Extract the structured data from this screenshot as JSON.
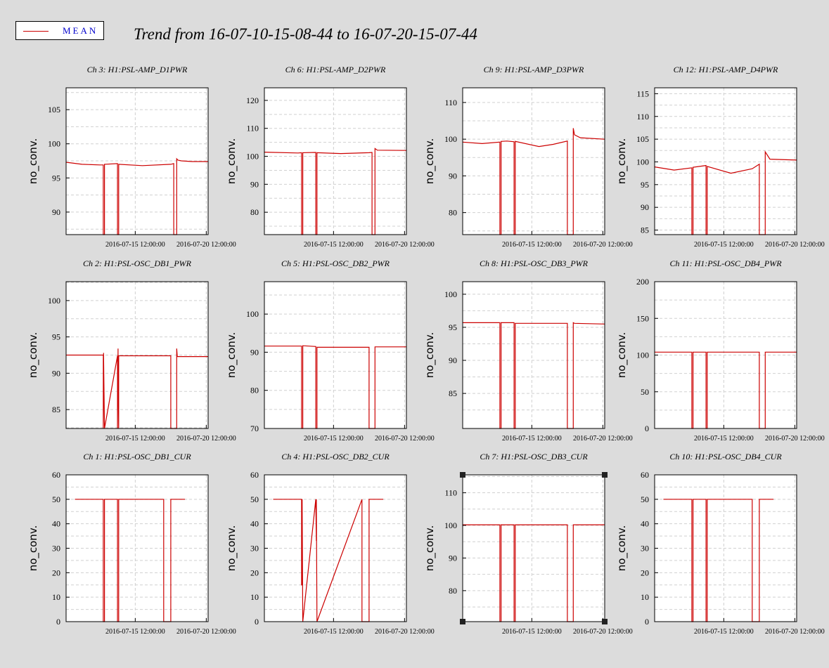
{
  "title": "Trend from 16-07-10-15-08-44 to 16-07-20-15-07-44",
  "legend": {
    "label": "MEAN",
    "color": "#cc0000"
  },
  "selected_chart": "Ch 7: H1:PSL-OSC_DB3_CUR",
  "chart_data": [
    {
      "type": "line",
      "title": "Ch 3: H1:PSL-AMP_D1PWR",
      "ylabel": "no_conv.",
      "xlim": [
        "2016-07-10 15:08:44",
        "2016-07-20 15:07:44"
      ],
      "xticks": [
        "2016-07-15 12:00:00",
        "2016-07-20 12:00:00"
      ],
      "ylim": [
        86.7,
        108.2
      ],
      "yticks": [
        90,
        95,
        100,
        105
      ],
      "grid": true,
      "series": [
        {
          "name": "MEAN",
          "x": [
            "2016-07-10 15:08:44",
            "2016-07-11 18:00:00",
            "2016-07-13 00:00:00",
            "2016-07-13 06:00:00",
            "2016-07-13 06:00:00",
            "2016-07-13 08:00:00",
            "2016-07-13 08:00:00",
            "2016-07-14 06:00:00",
            "2016-07-14 06:00:00",
            "2016-07-14 08:00:00",
            "2016-07-14 08:00:00",
            "2016-07-16 00:00:00",
            "2016-07-18 00:00:00",
            "2016-07-18 05:00:00",
            "2016-07-18 05:00:00",
            "2016-07-18 10:00:00",
            "2016-07-18 10:00:00",
            "2016-07-18 12:00:00",
            "2016-07-18 18:00:00",
            "2016-07-19 12:00:00",
            "2016-07-20 15:07:44"
          ],
          "y": [
            97.3,
            97.0,
            96.9,
            96.9,
            86.7,
            86.7,
            97.0,
            97.1,
            86.7,
            86.7,
            97.0,
            96.8,
            97.0,
            97.1,
            86.7,
            86.7,
            97.8,
            97.6,
            97.5,
            97.4,
            97.4
          ]
        }
      ]
    },
    {
      "type": "line",
      "title": "Ch 6: H1:PSL-AMP_D2PWR",
      "ylabel": "no_conv.",
      "xlim": [
        "2016-07-10 15:08:44",
        "2016-07-20 15:07:44"
      ],
      "xticks": [
        "2016-07-15 12:00:00",
        "2016-07-20 12:00:00"
      ],
      "ylim": [
        72,
        124.5
      ],
      "yticks": [
        80,
        90,
        100,
        110,
        120
      ],
      "grid": true,
      "series": [
        {
          "name": "MEAN",
          "x": [
            "2016-07-10 15:08:44",
            "2016-07-13 00:00:00",
            "2016-07-13 06:00:00",
            "2016-07-13 06:00:00",
            "2016-07-13 08:00:00",
            "2016-07-13 08:00:00",
            "2016-07-14 06:00:00",
            "2016-07-14 06:00:00",
            "2016-07-14 08:00:00",
            "2016-07-14 08:00:00",
            "2016-07-16 00:00:00",
            "2016-07-18 00:00:00",
            "2016-07-18 05:00:00",
            "2016-07-18 05:00:00",
            "2016-07-18 10:00:00",
            "2016-07-18 10:00:00",
            "2016-07-18 14:00:00",
            "2016-07-20 15:07:44"
          ],
          "y": [
            101.5,
            101.2,
            101.3,
            72,
            72,
            101.3,
            101.4,
            72,
            72,
            101.3,
            101.0,
            101.3,
            101.4,
            72,
            72,
            102.8,
            102.2,
            102.1
          ]
        }
      ]
    },
    {
      "type": "line",
      "title": "Ch 9: H1:PSL-AMP_D3PWR",
      "ylabel": "no_conv.",
      "xlim": [
        "2016-07-10 15:08:44",
        "2016-07-20 15:07:44"
      ],
      "xticks": [
        "2016-07-15 12:00:00",
        "2016-07-20 12:00:00"
      ],
      "ylim": [
        74,
        114
      ],
      "yticks": [
        80,
        90,
        100,
        110
      ],
      "grid": true,
      "series": [
        {
          "name": "MEAN",
          "x": [
            "2016-07-10 15:08:44",
            "2016-07-12 00:00:00",
            "2016-07-13 06:00:00",
            "2016-07-13 06:00:00",
            "2016-07-13 08:00:00",
            "2016-07-13 08:00:00",
            "2016-07-13 18:00:00",
            "2016-07-14 06:00:00",
            "2016-07-14 06:00:00",
            "2016-07-14 08:00:00",
            "2016-07-14 08:00:00",
            "2016-07-16 00:00:00",
            "2016-07-17 00:00:00",
            "2016-07-18 00:00:00",
            "2016-07-18 00:00:00",
            "2016-07-18 10:00:00",
            "2016-07-18 10:00:00",
            "2016-07-18 12:00:00",
            "2016-07-18 22:00:00",
            "2016-07-20 15:07:44"
          ],
          "y": [
            99.2,
            98.8,
            99.2,
            74,
            74,
            99.4,
            99.5,
            99.3,
            74,
            74,
            99.4,
            98.0,
            98.6,
            99.5,
            74,
            74,
            103.0,
            101.2,
            100.4,
            100.0
          ]
        }
      ]
    },
    {
      "type": "line",
      "title": "Ch 12: H1:PSL-AMP_D4PWR",
      "ylabel": "no_conv.",
      "xlim": [
        "2016-07-10 15:08:44",
        "2016-07-20 15:07:44"
      ],
      "xticks": [
        "2016-07-15 12:00:00",
        "2016-07-20 12:00:00"
      ],
      "ylim": [
        84,
        116.3
      ],
      "yticks": [
        85,
        90,
        95,
        100,
        105,
        110,
        115
      ],
      "grid": true,
      "series": [
        {
          "name": "MEAN",
          "x": [
            "2016-07-10 15:08:44",
            "2016-07-12 00:00:00",
            "2016-07-13 06:00:00",
            "2016-07-13 06:00:00",
            "2016-07-13 08:00:00",
            "2016-07-13 08:00:00",
            "2016-07-14 06:00:00",
            "2016-07-14 06:00:00",
            "2016-07-14 08:00:00",
            "2016-07-14 08:00:00",
            "2016-07-16 00:00:00",
            "2016-07-17 12:00:00",
            "2016-07-18 00:00:00",
            "2016-07-18 00:00:00",
            "2016-07-18 10:00:00",
            "2016-07-18 10:00:00",
            "2016-07-18 18:00:00",
            "2016-07-20 15:07:44"
          ],
          "y": [
            98.9,
            98.2,
            98.7,
            84,
            84,
            98.8,
            99.2,
            84,
            84,
            99.0,
            97.5,
            98.5,
            99.5,
            84,
            84,
            102.2,
            100.6,
            100.4
          ]
        }
      ]
    },
    {
      "type": "line",
      "title": "Ch 2: H1:PSL-OSC_DB1_PWR",
      "ylabel": "no_conv.",
      "xlim": [
        "2016-07-10 15:08:44",
        "2016-07-20 15:07:44"
      ],
      "xticks": [
        "2016-07-15 12:00:00",
        "2016-07-20 12:00:00"
      ],
      "ylim": [
        82.4,
        102.6
      ],
      "yticks": [
        85,
        90,
        95,
        100
      ],
      "grid": true,
      "series": [
        {
          "name": "MEAN",
          "x": [
            "2016-07-10 15:08:44",
            "2016-07-13 06:00:00",
            "2016-07-13 06:00:00",
            "2016-07-13 06:30:00",
            "2016-07-13 06:30:00",
            "2016-07-13 08:00:00",
            "2016-07-13 08:00:00",
            "2016-07-14 06:00:00",
            "2016-07-14 06:00:00",
            "2016-07-14 07:00:00",
            "2016-07-14 07:00:00",
            "2016-07-14 08:00:00",
            "2016-07-14 08:00:00",
            "2016-07-18 00:00:00",
            "2016-07-18 00:00:00",
            "2016-07-18 10:00:00",
            "2016-07-18 10:00:00",
            "2016-07-18 11:00:00",
            "2016-07-18 11:00:00",
            "2016-07-20 15:07:44"
          ],
          "y": [
            92.5,
            92.5,
            82.4,
            92.8,
            92.4,
            82.4,
            82.4,
            92.4,
            82.4,
            93.4,
            92.4,
            82.4,
            92.4,
            92.4,
            82.4,
            82.4,
            93.4,
            92.3,
            92.3,
            92.3
          ]
        }
      ]
    },
    {
      "type": "line",
      "title": "Ch 5: H1:PSL-OSC_DB2_PWR",
      "ylabel": "no_conv.",
      "xlim": [
        "2016-07-10 15:08:44",
        "2016-07-20 15:07:44"
      ],
      "xticks": [
        "2016-07-15 12:00:00",
        "2016-07-20 12:00:00"
      ],
      "ylim": [
        70,
        108.5
      ],
      "yticks": [
        70,
        80,
        90,
        100
      ],
      "grid": true,
      "series": [
        {
          "name": "MEAN",
          "x": [
            "2016-07-10 15:08:44",
            "2016-07-13 06:00:00",
            "2016-07-13 06:00:00",
            "2016-07-13 08:00:00",
            "2016-07-13 08:00:00",
            "2016-07-14 06:00:00",
            "2016-07-14 06:00:00",
            "2016-07-14 08:00:00",
            "2016-07-14 08:00:00",
            "2016-07-18 00:00:00",
            "2016-07-18 00:00:00",
            "2016-07-18 10:00:00",
            "2016-07-18 10:00:00",
            "2016-07-20 15:07:44"
          ],
          "y": [
            91.6,
            91.6,
            70,
            70,
            91.7,
            91.5,
            70,
            70,
            91.3,
            91.3,
            70,
            70,
            91.4,
            91.4
          ]
        }
      ]
    },
    {
      "type": "line",
      "title": "Ch 8: H1:PSL-OSC_DB3_PWR",
      "ylabel": "no_conv.",
      "xlim": [
        "2016-07-10 15:08:44",
        "2016-07-20 15:07:44"
      ],
      "xticks": [
        "2016-07-15 12:00:00",
        "2016-07-20 12:00:00"
      ],
      "ylim": [
        79.7,
        101.9
      ],
      "yticks": [
        85,
        90,
        95,
        100
      ],
      "grid": true,
      "series": [
        {
          "name": "MEAN",
          "x": [
            "2016-07-10 15:08:44",
            "2016-07-13 06:00:00",
            "2016-07-13 06:00:00",
            "2016-07-13 08:00:00",
            "2016-07-13 08:00:00",
            "2016-07-14 06:00:00",
            "2016-07-14 06:00:00",
            "2016-07-14 08:00:00",
            "2016-07-14 08:00:00",
            "2016-07-18 00:00:00",
            "2016-07-18 00:00:00",
            "2016-07-18 10:00:00",
            "2016-07-18 10:00:00",
            "2016-07-18 12:00:00",
            "2016-07-20 15:07:44"
          ],
          "y": [
            95.7,
            95.7,
            79.7,
            79.7,
            95.7,
            95.7,
            79.7,
            79.7,
            95.6,
            95.6,
            79.7,
            79.7,
            95.7,
            95.6,
            95.5
          ]
        }
      ]
    },
    {
      "type": "line",
      "title": "Ch 11: H1:PSL-OSC_DB4_PWR",
      "ylabel": "no_conv.",
      "xlim": [
        "2016-07-10 15:08:44",
        "2016-07-20 15:07:44"
      ],
      "xticks": [
        "2016-07-15 12:00:00",
        "2016-07-20 12:00:00"
      ],
      "ylim": [
        0,
        200
      ],
      "yticks": [
        0,
        50,
        100,
        150,
        200
      ],
      "grid": true,
      "series": [
        {
          "name": "MEAN",
          "x": [
            "2016-07-10 15:08:44",
            "2016-07-13 06:00:00",
            "2016-07-13 06:00:00",
            "2016-07-13 08:00:00",
            "2016-07-13 08:00:00",
            "2016-07-14 06:00:00",
            "2016-07-14 06:00:00",
            "2016-07-14 08:00:00",
            "2016-07-14 08:00:00",
            "2016-07-18 00:00:00",
            "2016-07-18 00:00:00",
            "2016-07-18 10:00:00",
            "2016-07-18 10:00:00",
            "2016-07-20 15:07:44"
          ],
          "y": [
            104,
            104,
            0,
            0,
            104,
            104,
            0,
            0,
            104,
            104,
            0,
            0,
            104,
            104
          ]
        }
      ]
    },
    {
      "type": "line",
      "title": "Ch 1: H1:PSL-OSC_DB1_CUR",
      "ylabel": "no_conv.",
      "xlim": [
        "2016-07-10 15:08:44",
        "2016-07-20 15:07:44"
      ],
      "xticks": [
        "2016-07-15 12:00:00",
        "2016-07-20 12:00:00"
      ],
      "ylim": [
        0,
        60
      ],
      "yticks": [
        0,
        10,
        20,
        30,
        40,
        50,
        60
      ],
      "grid": true,
      "series": [
        {
          "name": "MEAN",
          "x": [
            "2016-07-11 06:00:00",
            "2016-07-13 06:00:00",
            "2016-07-13 06:00:00",
            "2016-07-13 08:00:00",
            "2016-07-13 08:00:00",
            "2016-07-14 06:00:00",
            "2016-07-14 06:00:00",
            "2016-07-14 08:00:00",
            "2016-07-14 08:00:00",
            "2016-07-17 12:00:00",
            "2016-07-17 12:00:00",
            "2016-07-18 00:00:00",
            "2016-07-18 00:00:00",
            "2016-07-19 00:00:00"
          ],
          "y": [
            50,
            50,
            0,
            0,
            50,
            50,
            0,
            0,
            50,
            50,
            0,
            0,
            50,
            50
          ]
        }
      ]
    },
    {
      "type": "line",
      "title": "Ch 4: H1:PSL-OSC_DB2_CUR",
      "ylabel": "no_conv.",
      "xlim": [
        "2016-07-10 15:08:44",
        "2016-07-20 15:07:44"
      ],
      "xticks": [
        "2016-07-15 12:00:00",
        "2016-07-20 12:00:00"
      ],
      "ylim": [
        0,
        60
      ],
      "yticks": [
        0,
        10,
        20,
        30,
        40,
        50,
        60
      ],
      "grid": true,
      "series": [
        {
          "name": "MEAN",
          "x": [
            "2016-07-11 06:00:00",
            "2016-07-13 06:00:00",
            "2016-07-13 06:00:00",
            "2016-07-13 07:00:00",
            "2016-07-13 07:00:00",
            "2016-07-13 08:00:00",
            "2016-07-13 08:00:00",
            "2016-07-14 06:00:00",
            "2016-07-14 06:00:00",
            "2016-07-14 07:00:00",
            "2016-07-14 07:00:00",
            "2016-07-14 08:00:00",
            "2016-07-14 08:00:00",
            "2016-07-17 12:00:00",
            "2016-07-17 12:00:00",
            "2016-07-18 00:00:00",
            "2016-07-18 00:00:00",
            "2016-07-19 00:00:00"
          ],
          "y": [
            50,
            50,
            15,
            15,
            50,
            0,
            0,
            50,
            50,
            33,
            50,
            0,
            0,
            50,
            0,
            0,
            50,
            50
          ]
        }
      ]
    },
    {
      "type": "line",
      "title": "Ch 7: H1:PSL-OSC_DB3_CUR",
      "ylabel": "no_conv.",
      "xlim": [
        "2016-07-10 15:08:44",
        "2016-07-20 15:07:44"
      ],
      "xticks": [
        "2016-07-15 12:00:00",
        "2016-07-20 12:00:00"
      ],
      "ylim": [
        70.5,
        115.5
      ],
      "yticks": [
        80,
        90,
        100,
        110
      ],
      "grid": true,
      "series": [
        {
          "name": "MEAN",
          "x": [
            "2016-07-10 15:08:44",
            "2016-07-13 06:00:00",
            "2016-07-13 06:00:00",
            "2016-07-13 08:00:00",
            "2016-07-13 08:00:00",
            "2016-07-14 06:00:00",
            "2016-07-14 06:00:00",
            "2016-07-14 08:00:00",
            "2016-07-14 08:00:00",
            "2016-07-18 00:00:00",
            "2016-07-18 00:00:00",
            "2016-07-18 10:00:00",
            "2016-07-18 10:00:00",
            "2016-07-20 15:07:44"
          ],
          "y": [
            100.2,
            100.2,
            70.5,
            70.5,
            100.2,
            100.2,
            70.5,
            70.5,
            100.2,
            100.2,
            70.5,
            70.5,
            100.2,
            100.2
          ]
        }
      ]
    },
    {
      "type": "line",
      "title": "Ch 10: H1:PSL-OSC_DB4_CUR",
      "ylabel": "no_conv.",
      "xlim": [
        "2016-07-10 15:08:44",
        "2016-07-20 15:07:44"
      ],
      "xticks": [
        "2016-07-15 12:00:00",
        "2016-07-20 12:00:00"
      ],
      "ylim": [
        0,
        60
      ],
      "yticks": [
        0,
        10,
        20,
        30,
        40,
        50,
        60
      ],
      "grid": true,
      "series": [
        {
          "name": "MEAN",
          "x": [
            "2016-07-11 06:00:00",
            "2016-07-13 06:00:00",
            "2016-07-13 06:00:00",
            "2016-07-13 08:00:00",
            "2016-07-13 08:00:00",
            "2016-07-14 06:00:00",
            "2016-07-14 06:00:00",
            "2016-07-14 08:00:00",
            "2016-07-14 08:00:00",
            "2016-07-17 12:00:00",
            "2016-07-17 12:00:00",
            "2016-07-18 00:00:00",
            "2016-07-18 00:00:00",
            "2016-07-19 00:00:00"
          ],
          "y": [
            50,
            50,
            0,
            0,
            50,
            50,
            0,
            0,
            50,
            50,
            0,
            0,
            50,
            50
          ]
        }
      ]
    }
  ]
}
